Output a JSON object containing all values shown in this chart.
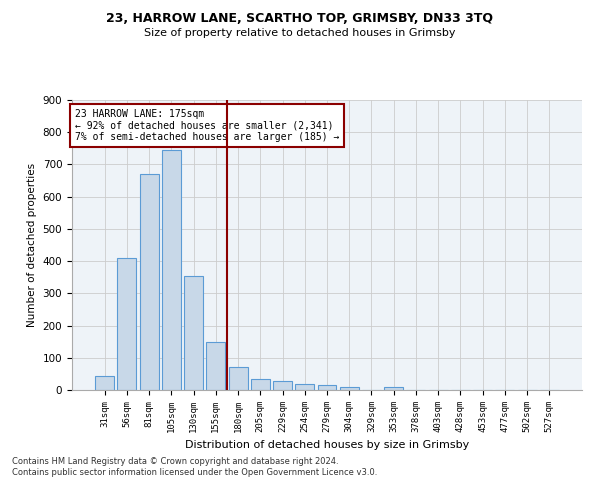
{
  "title1": "23, HARROW LANE, SCARTHO TOP, GRIMSBY, DN33 3TQ",
  "title2": "Size of property relative to detached houses in Grimsby",
  "xlabel": "Distribution of detached houses by size in Grimsby",
  "ylabel": "Number of detached properties",
  "categories": [
    "31sqm",
    "56sqm",
    "81sqm",
    "105sqm",
    "130sqm",
    "155sqm",
    "180sqm",
    "205sqm",
    "229sqm",
    "254sqm",
    "279sqm",
    "304sqm",
    "329sqm",
    "353sqm",
    "378sqm",
    "403sqm",
    "428sqm",
    "453sqm",
    "477sqm",
    "502sqm",
    "527sqm"
  ],
  "values": [
    45,
    410,
    670,
    745,
    355,
    150,
    70,
    35,
    28,
    18,
    17,
    10,
    0,
    8,
    0,
    0,
    0,
    0,
    0,
    0,
    0
  ],
  "bar_color": "#c8d8e8",
  "bar_edge_color": "#5b9bd5",
  "vline_x": 5.5,
  "vline_color": "#8b0000",
  "annotation_text": "23 HARROW LANE: 175sqm\n← 92% of detached houses are smaller (2,341)\n7% of semi-detached houses are larger (185) →",
  "annotation_box_color": "#ffffff",
  "annotation_box_edge": "#8b0000",
  "footnote": "Contains HM Land Registry data © Crown copyright and database right 2024.\nContains public sector information licensed under the Open Government Licence v3.0.",
  "bg_color": "#eef3f8",
  "ylim": [
    0,
    900
  ],
  "yticks": [
    0,
    100,
    200,
    300,
    400,
    500,
    600,
    700,
    800,
    900
  ]
}
